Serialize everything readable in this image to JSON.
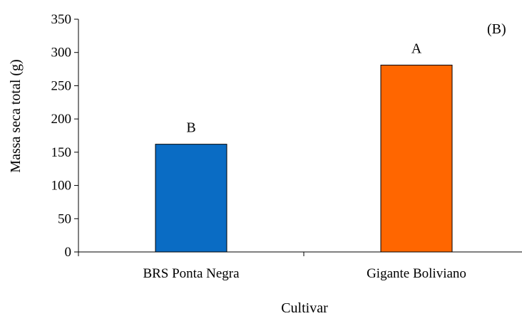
{
  "chart_data": {
    "type": "bar",
    "panel_label": "(B)",
    "xlabel": "Cultivar",
    "ylabel": "Massa seca total (g)",
    "categories": [
      "BRS Ponta Negra",
      "Gigante Boliviano"
    ],
    "values": [
      162,
      281
    ],
    "data_labels": [
      "B",
      "A"
    ],
    "colors": [
      "#0a6cc4",
      "#ff6600"
    ],
    "ylim": [
      0,
      350
    ],
    "yticks": [
      0,
      50,
      100,
      150,
      200,
      250,
      300,
      350
    ],
    "grid": false,
    "legend": "none"
  }
}
